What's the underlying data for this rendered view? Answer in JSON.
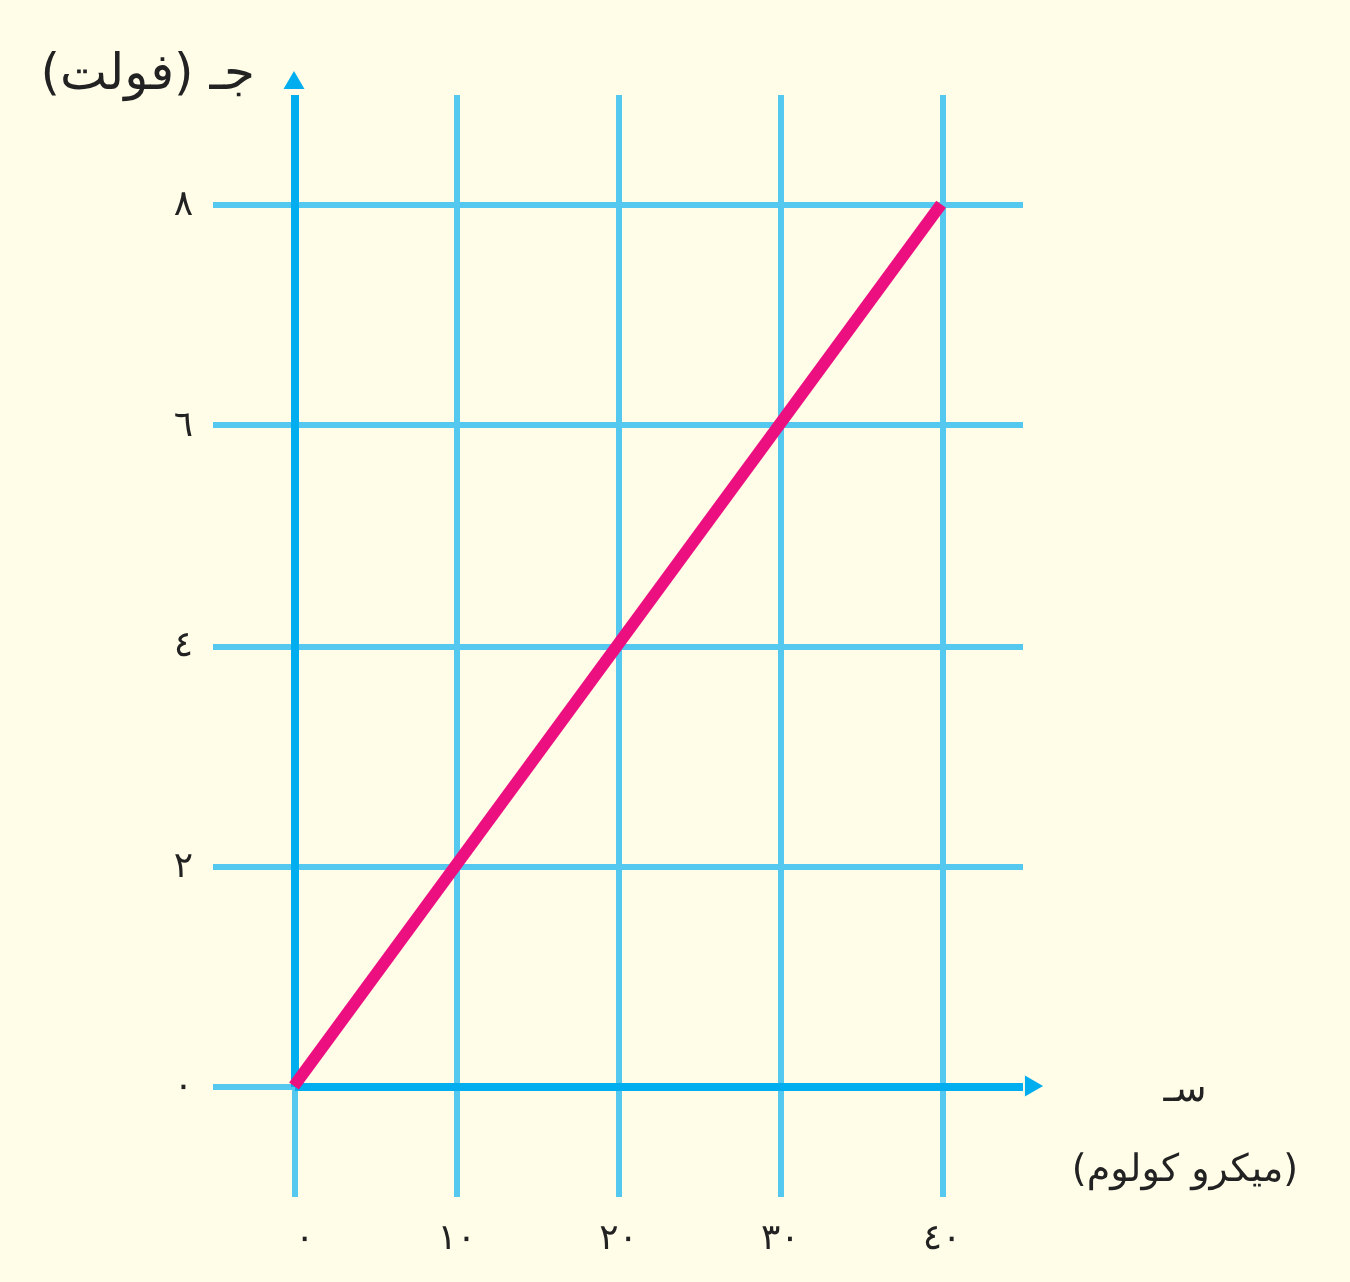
{
  "chart_data": {
    "type": "line",
    "xlabel": "سـ\n(ميكرو كولوم)",
    "ylabel": "جـ (فولت)",
    "x": [
      0,
      40
    ],
    "series": [
      {
        "color": "#ec0f80",
        "values": [
          0,
          8
        ]
      }
    ],
    "xlim": [
      0,
      45
    ],
    "ylim": [
      0,
      9
    ],
    "xticks": [
      {
        "value": 0,
        "label": "٠"
      },
      {
        "value": 10,
        "label": "١٠"
      },
      {
        "value": 20,
        "label": "٢٠"
      },
      {
        "value": 30,
        "label": "٣٠"
      },
      {
        "value": 40,
        "label": "٤٠"
      }
    ],
    "yticks": [
      {
        "value": 0,
        "label": "٠"
      },
      {
        "value": 2,
        "label": "٢"
      },
      {
        "value": 4,
        "label": "٤"
      },
      {
        "value": 6,
        "label": "٦"
      },
      {
        "value": 8,
        "label": "٨"
      }
    ],
    "grid": true,
    "legend": false,
    "marker": "none",
    "line_style": "solid"
  }
}
